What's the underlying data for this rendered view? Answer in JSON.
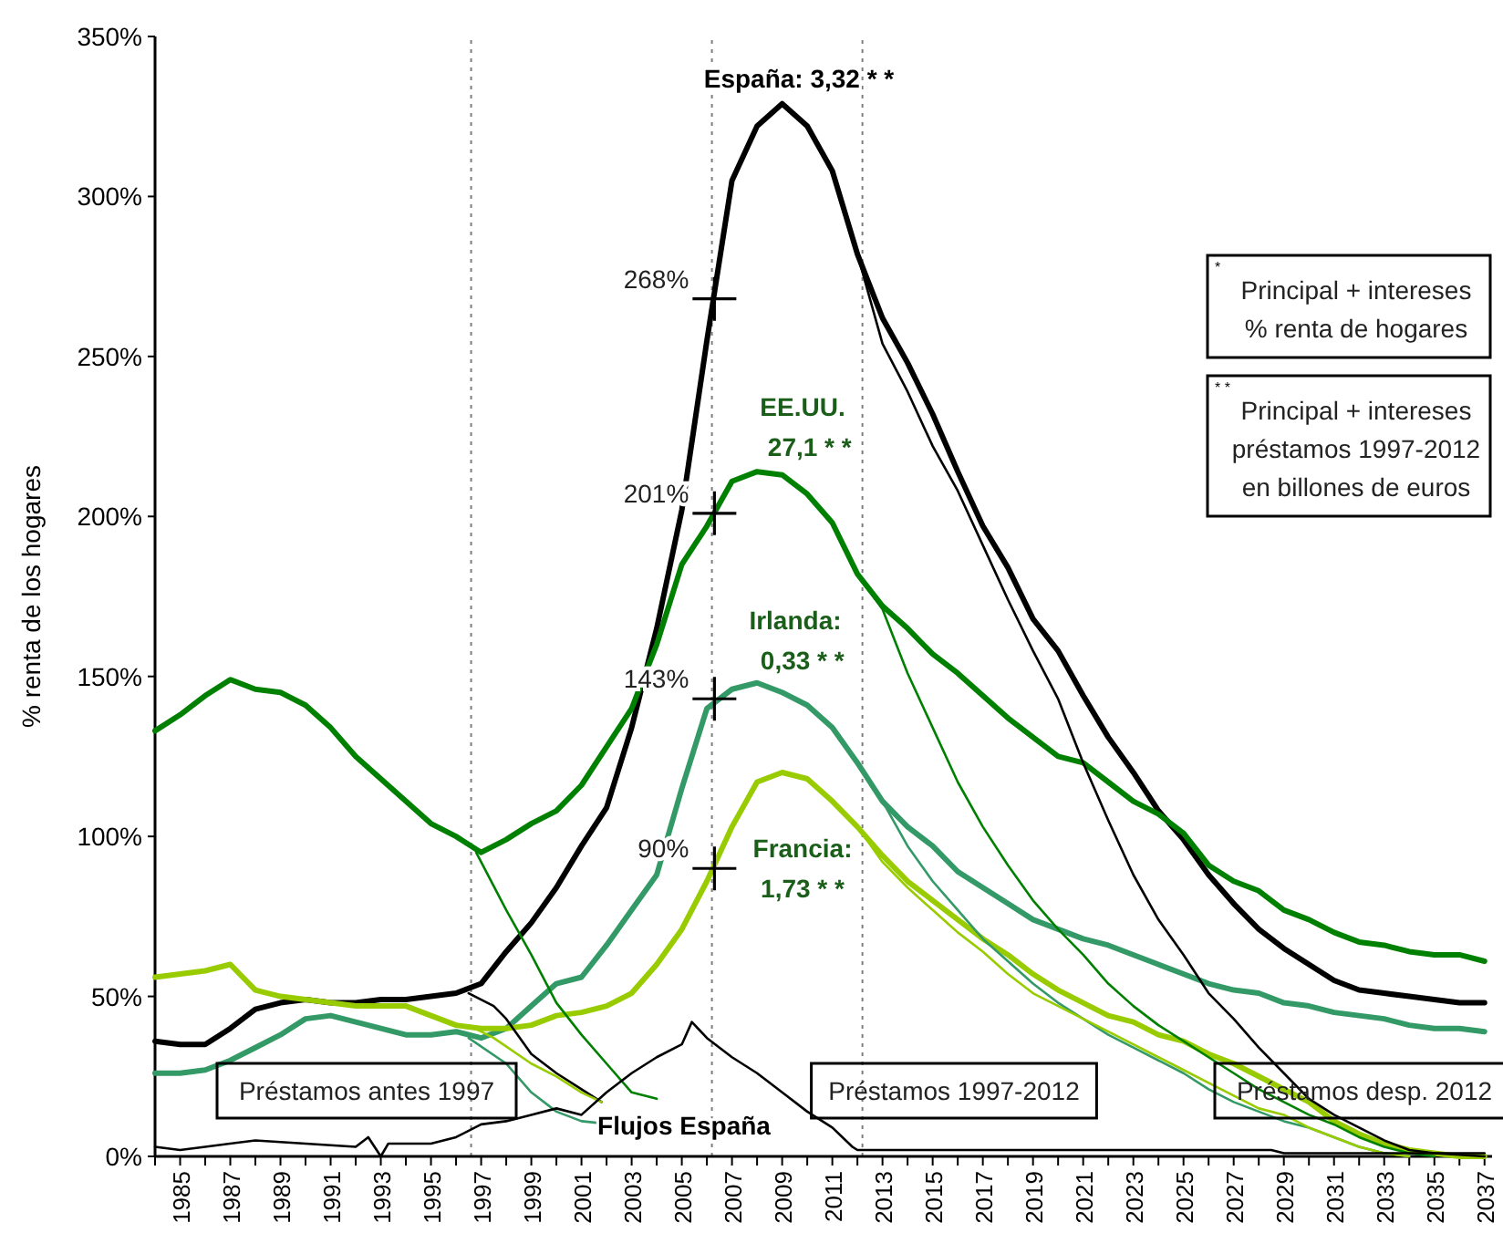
{
  "chart_data": {
    "type": "line",
    "ylabel": "% renta de los hogares",
    "xlim": [
      1984,
      2037.3
    ],
    "ylim": [
      0,
      350
    ],
    "xticks": [
      {
        "value": 1984,
        "label": null
      },
      1985,
      {
        "value": 1986,
        "label": null
      },
      1987,
      {
        "value": 1988,
        "label": null
      },
      1989,
      {
        "value": 1990,
        "label": null
      },
      1991,
      {
        "value": 1992,
        "label": null
      },
      1993,
      {
        "value": 1994,
        "label": null
      },
      1995,
      {
        "value": 1996,
        "label": null
      },
      1997,
      {
        "value": 1998,
        "label": null
      },
      1999,
      {
        "value": 2000,
        "label": null
      },
      2001,
      {
        "value": 2002,
        "label": null
      },
      2003,
      {
        "value": 2004,
        "label": null
      },
      2005,
      {
        "value": 2006,
        "label": null
      },
      2007,
      {
        "value": 2008,
        "label": null
      },
      2009,
      {
        "value": 2010,
        "label": null
      },
      2011,
      {
        "value": 2012,
        "label": null
      },
      2013,
      {
        "value": 2014,
        "label": null
      },
      2015,
      {
        "value": 2016,
        "label": null
      },
      2017,
      {
        "value": 2018,
        "label": null
      },
      2019,
      {
        "value": 2020,
        "label": null
      },
      2021,
      {
        "value": 2022,
        "label": null
      },
      2023,
      {
        "value": 2024,
        "label": null
      },
      2025,
      {
        "value": 2026,
        "label": null
      },
      2027,
      {
        "value": 2028,
        "label": null
      },
      2029,
      {
        "value": 2030,
        "label": null
      },
      2031,
      {
        "value": 2032,
        "label": null
      },
      2033,
      {
        "value": 2034,
        "label": null
      },
      2035,
      {
        "value": 2036,
        "label": null
      },
      2037
    ],
    "yticks": [
      {
        "value": 0,
        "label": "0%"
      },
      {
        "value": 50,
        "label": "50%"
      },
      {
        "value": 100,
        "label": "100%"
      },
      {
        "value": 150,
        "label": "150%"
      },
      {
        "value": 200,
        "label": "200%"
      },
      {
        "value": 250,
        "label": "250%"
      },
      {
        "value": 300,
        "label": "300%"
      },
      {
        "value": 350,
        "label": "350%"
      }
    ],
    "grid": false,
    "line_style": "solid",
    "x": [
      1984,
      1985,
      1986,
      1987,
      1988,
      1989,
      1990,
      1991,
      1992,
      1993,
      1994,
      1995,
      1996,
      1997,
      1998,
      1999,
      2000,
      2001,
      2002,
      2003,
      2004,
      2005,
      2006,
      2007,
      2008,
      2009,
      2010,
      2011,
      2012,
      2013,
      2014,
      2015,
      2016,
      2017,
      2018,
      2019,
      2020,
      2021,
      2022,
      2023,
      2024,
      2025,
      2026,
      2027,
      2028,
      2029,
      2030,
      2031,
      2032,
      2033,
      2034,
      2035,
      2036,
      2037
    ],
    "series": [
      {
        "color": "#000000",
        "values": [
          36,
          35,
          35,
          40,
          46,
          48,
          49,
          48,
          48,
          49,
          49,
          50,
          51,
          54,
          64,
          73,
          84,
          97,
          109,
          134,
          165,
          202,
          255,
          305,
          322,
          329,
          322,
          308,
          282,
          262,
          248,
          232,
          214,
          197,
          184,
          168,
          158,
          144,
          131,
          120,
          108,
          99,
          88,
          79,
          71,
          65,
          60,
          55,
          52,
          51,
          50,
          49,
          48,
          48
        ]
      },
      {
        "color": "#008000",
        "values": [
          133,
          138,
          144,
          149,
          146,
          145,
          141,
          134,
          125,
          118,
          111,
          104,
          100,
          95,
          99,
          104,
          108,
          116,
          128,
          140,
          160,
          185,
          197,
          211,
          214,
          213,
          207,
          198,
          182,
          172,
          165,
          157,
          151,
          144,
          137,
          131,
          125,
          123,
          117,
          111,
          107,
          101,
          91,
          86,
          83,
          77,
          74,
          70,
          67,
          66,
          64,
          63,
          63,
          61
        ]
      },
      {
        "color": "#339966",
        "values": [
          26,
          26,
          27,
          30,
          34,
          38,
          43,
          44,
          42,
          40,
          38,
          38,
          39,
          37,
          40,
          47,
          54,
          56,
          66,
          77,
          88,
          115,
          140,
          146,
          148,
          145,
          141,
          134,
          123,
          111,
          103,
          97,
          89,
          84,
          79,
          74,
          71,
          68,
          66,
          63,
          60,
          57,
          54,
          52,
          51,
          48,
          47,
          45,
          44,
          43,
          41,
          40,
          40,
          39
        ]
      },
      {
        "color": "#99cc00",
        "values": [
          56,
          57,
          58,
          60,
          52,
          50,
          49,
          48,
          47,
          47,
          47,
          44,
          41,
          40,
          40,
          41,
          44,
          45,
          47,
          51,
          60,
          71,
          86,
          103,
          117,
          120,
          118,
          111,
          103,
          94,
          86,
          80,
          74,
          68,
          63,
          57,
          52,
          48,
          44,
          42,
          38,
          36,
          32,
          29,
          25,
          21,
          17,
          11,
          7,
          4,
          2,
          1,
          0,
          0
        ]
      },
      {
        "color": "#000000",
        "x": [
          2012,
          2013,
          2014,
          2015,
          2016,
          2017,
          2018,
          2019,
          2020,
          2021,
          2022,
          2023,
          2024,
          2025,
          2026,
          2027,
          2028,
          2029,
          2030,
          2031,
          2032,
          2033,
          2034,
          2035,
          2037
        ],
        "values": [
          282,
          254,
          239,
          222,
          208,
          191,
          174,
          158,
          143,
          123,
          105,
          88,
          74,
          63,
          51,
          43,
          34,
          26,
          18,
          13,
          9,
          5,
          2,
          1,
          0
        ]
      },
      {
        "color": "#008000",
        "x": [
          2012,
          2013,
          2014,
          2015,
          2016,
          2017,
          2018,
          2019,
          2020,
          2021,
          2022,
          2023,
          2024,
          2025,
          2026,
          2027,
          2028,
          2029,
          2030,
          2031,
          2032,
          2033,
          2034,
          2035
        ],
        "values": [
          182,
          171,
          151,
          134,
          117,
          103,
          91,
          80,
          71,
          63,
          54,
          47,
          41,
          36,
          31,
          26,
          21,
          17,
          13,
          10,
          6,
          3,
          1,
          0
        ]
      },
      {
        "color": "#339966",
        "x": [
          2012,
          2013,
          2014,
          2015,
          2016,
          2017,
          2018,
          2019,
          2020,
          2021,
          2022,
          2023,
          2024,
          2025,
          2026,
          2027,
          2028,
          2029,
          2030,
          2031,
          2032,
          2033,
          2034
        ],
        "values": [
          123,
          111,
          97,
          86,
          77,
          68,
          61,
          54,
          48,
          43,
          38,
          34,
          30,
          26,
          21,
          17,
          14,
          11,
          9,
          6,
          3,
          1,
          0
        ]
      },
      {
        "color": "#99cc00",
        "x": [
          2012,
          2013,
          2014,
          2015,
          2016,
          2017,
          2018,
          2019,
          2020,
          2021,
          2022,
          2023,
          2024,
          2025,
          2026,
          2027,
          2028,
          2029,
          2030,
          2031,
          2032,
          2033,
          2034
        ],
        "values": [
          103,
          92,
          84,
          77,
          70,
          64,
          57,
          51,
          47,
          43,
          39,
          35,
          31,
          27,
          23,
          19,
          15,
          13,
          9,
          6,
          3,
          1,
          0
        ]
      },
      {
        "color": "#008000",
        "x": [
          1996.8,
          1998,
          1999,
          2000,
          2001,
          2002,
          2003,
          2004
        ],
        "values": [
          95,
          77,
          63,
          48,
          38,
          29,
          20,
          18
        ]
      },
      {
        "color": "#000000",
        "x": [
          1996.5,
          1997.5,
          1998,
          1999,
          2000,
          2001,
          2001.8
        ],
        "values": [
          51,
          47,
          43,
          32,
          26,
          21,
          17
        ]
      },
      {
        "color": "#339966",
        "x": [
          1996.5,
          1998,
          1999,
          2000,
          2001,
          2002.2
        ],
        "values": [
          37,
          29,
          20,
          14,
          11,
          10
        ]
      },
      {
        "color": "#99cc00",
        "x": [
          1996.5,
          1997.5,
          1999,
          2000,
          2001,
          2001.8
        ],
        "values": [
          41,
          37,
          29,
          25,
          20,
          17
        ]
      },
      {
        "color": "#000000",
        "x": [
          1984,
          1985,
          1986,
          1988,
          1990,
          1992,
          1992.5,
          1993,
          1993.3,
          1995,
          1996,
          1997,
          1998,
          1999,
          2000,
          2001,
          2002,
          2003,
          2004,
          2005,
          2005.4,
          2006,
          2007,
          2008,
          2009,
          2010,
          2011,
          2011.8,
          2012,
          2028.5,
          2029,
          2037
        ],
        "values": [
          3,
          2,
          3,
          5,
          4,
          3,
          6,
          0,
          4,
          4,
          6,
          10,
          11,
          13,
          15,
          13,
          20,
          26,
          31,
          35,
          42,
          37,
          31,
          26,
          20,
          14,
          9,
          3,
          2,
          2,
          1,
          1
        ]
      },
      {
        "type": "scatter",
        "marker": "cross",
        "color": "#000000",
        "x": [
          2006.3,
          2006.3,
          2006.3,
          2006.3
        ],
        "values": [
          268,
          201,
          143,
          90
        ],
        "value_labels": [
          "268%",
          "201%",
          "143%",
          "90%"
        ]
      }
    ],
    "ref_lines": [
      {
        "axis": "x",
        "value": 1996.6,
        "line_style": "dotted"
      },
      {
        "axis": "x",
        "value": 2006.2,
        "line_style": "dotted"
      },
      {
        "axis": "x",
        "value": 2012.2,
        "line_style": "dotted"
      }
    ],
    "annotations": [
      "España: 3,32 * *",
      "EE.UU.\n  27,1 * *",
      "Irlanda:\n  0,33 * *",
      "Francia:\n1,73 * *",
      "Flujos España",
      "Préstamos antes 1997",
      "Préstamos 1997-2012",
      "Préstamos desp. 2012",
      "*\nPrincipal +  intereses\n% renta de hogares",
      "* *\nPrincipal + intereses\npréstamos 1997-2012\nen billones de euros"
    ]
  }
}
